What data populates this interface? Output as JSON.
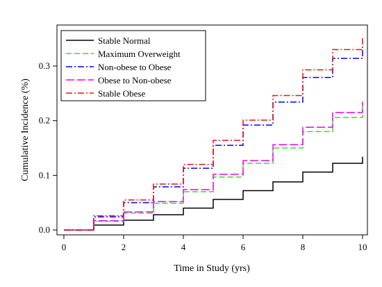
{
  "chart_data": {
    "type": "line",
    "step": true,
    "xlabel": "Time in Study (yrs)",
    "ylabel": "Cumulative Incidence (%)",
    "xlim": [
      0,
      10
    ],
    "ylim": [
      0,
      0.36
    ],
    "x_ticks": [
      0,
      2,
      4,
      6,
      8,
      10
    ],
    "y_ticks": [
      0.0,
      0.1,
      0.2,
      0.3
    ],
    "y_tick_labels": [
      "0.0",
      "0.1",
      "0.2",
      "0.3"
    ],
    "x_tick_labels": [
      "0",
      "2",
      "4",
      "6",
      "8",
      "10"
    ],
    "grid": false,
    "legend_position": "top-left",
    "x": [
      0,
      1,
      2,
      3,
      4,
      5,
      6,
      7,
      8,
      9,
      10
    ],
    "series": [
      {
        "name": "Stable Normal",
        "color": "#000000",
        "dash": "solid",
        "values": [
          0.0,
          0.009,
          0.018,
          0.028,
          0.04,
          0.056,
          0.072,
          0.088,
          0.106,
          0.122,
          0.134
        ],
        "x_end": [
          1,
          2,
          3,
          4,
          5,
          6,
          7,
          8,
          9,
          10,
          10
        ]
      },
      {
        "name": "Maximum Overweight",
        "color": "#33dd33",
        "dash": "dashed",
        "values": [
          0.0,
          0.016,
          0.031,
          0.049,
          0.07,
          0.097,
          0.122,
          0.15,
          0.18,
          0.206,
          0.228
        ],
        "x_end": [
          1,
          2,
          3,
          4,
          5,
          6,
          7,
          8,
          9,
          10,
          10
        ]
      },
      {
        "name": "Non-obese to Obese",
        "color": "#0000ee",
        "dash": "dashdot",
        "values": [
          0.0,
          0.024,
          0.05,
          0.079,
          0.113,
          0.155,
          0.192,
          0.234,
          0.279,
          0.314,
          0.34
        ],
        "x_end": [
          1,
          2,
          3,
          4,
          5,
          6,
          7,
          8,
          9,
          10,
          10
        ]
      },
      {
        "name": "Obese to Non-obese",
        "color": "#ee00ee",
        "dash": "longdash",
        "values": [
          0.0,
          0.017,
          0.033,
          0.052,
          0.074,
          0.102,
          0.127,
          0.156,
          0.188,
          0.215,
          0.235
        ],
        "x_end": [
          1,
          2,
          3,
          4,
          5,
          6,
          7,
          8,
          9,
          10,
          10
        ]
      },
      {
        "name": "Stable Obese",
        "color": "#ee1111",
        "dash": "dashdot",
        "values": [
          0.0,
          0.026,
          0.055,
          0.084,
          0.12,
          0.164,
          0.201,
          0.246,
          0.293,
          0.33,
          0.355
        ],
        "x_end": [
          1,
          2,
          3,
          4,
          5,
          6,
          7,
          8,
          9,
          10,
          10
        ]
      }
    ]
  }
}
